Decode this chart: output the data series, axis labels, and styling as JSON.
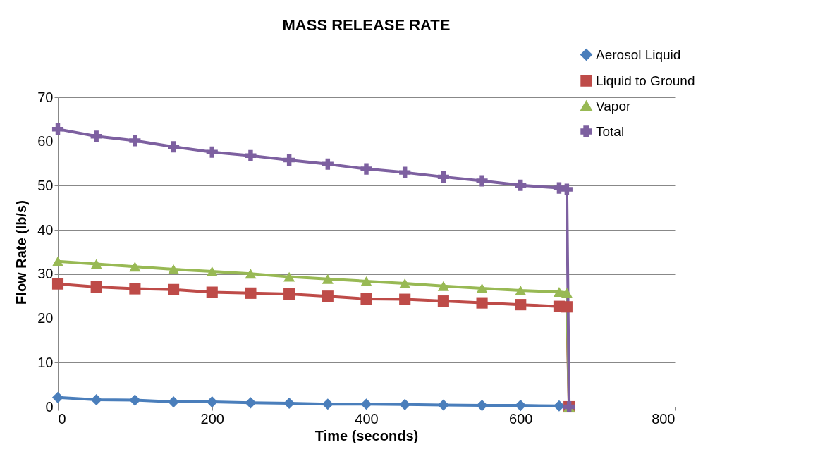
{
  "chart_data": {
    "type": "line",
    "title": "MASS RELEASE RATE",
    "xlabel": "Time (seconds)",
    "ylabel": "Flow Rate (lb/s)",
    "x": [
      0,
      50,
      100,
      150,
      200,
      250,
      300,
      350,
      400,
      450,
      500,
      550,
      600,
      650,
      660,
      663
    ],
    "xlim": [
      0,
      800
    ],
    "xticks": [
      0,
      200,
      400,
      600,
      800
    ],
    "ylim": [
      0,
      70
    ],
    "yticks": [
      0,
      10,
      20,
      30,
      40,
      50,
      60,
      70
    ],
    "grid": "y",
    "legend": "top right",
    "series": [
      {
        "name": "Aerosol Liquid",
        "color": "#4a7ebb",
        "marker": "diamond",
        "values": [
          2.1,
          1.6,
          1.5,
          1.1,
          1.1,
          0.9,
          0.8,
          0.6,
          0.6,
          0.5,
          0.4,
          0.3,
          0.3,
          0.2,
          null,
          null
        ]
      },
      {
        "name": "Liquid to Ground",
        "color": "#be4b48",
        "marker": "square",
        "values": [
          27.8,
          27.1,
          26.7,
          26.5,
          25.9,
          25.7,
          25.5,
          25.0,
          24.4,
          24.3,
          23.9,
          23.5,
          23.1,
          22.7,
          22.6,
          0
        ]
      },
      {
        "name": "Vapor",
        "color": "#98b954",
        "marker": "triangle",
        "values": [
          32.9,
          32.3,
          31.7,
          31.1,
          30.6,
          30.1,
          29.4,
          28.9,
          28.4,
          27.9,
          27.3,
          26.8,
          26.3,
          26.0,
          25.8,
          0
        ]
      },
      {
        "name": "Total",
        "color": "#7d60a0",
        "marker": "cross",
        "values": [
          62.8,
          61.2,
          60.2,
          58.8,
          57.6,
          56.8,
          55.8,
          54.9,
          53.8,
          53.0,
          52.0,
          51.1,
          50.1,
          49.5,
          49.2,
          0
        ]
      }
    ]
  }
}
